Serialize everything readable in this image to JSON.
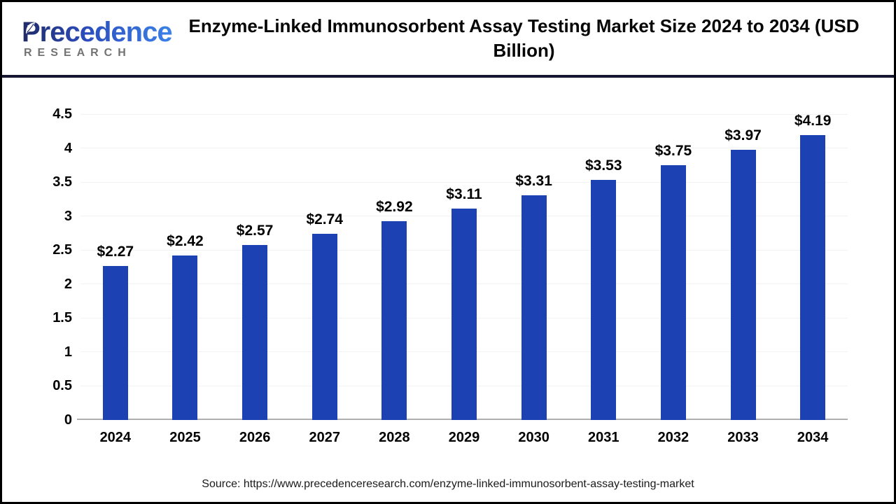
{
  "header": {
    "logo": {
      "line1": "Precedence",
      "line2": "RESEARCH"
    },
    "title": "Enzyme-Linked Immunosorbent Assay Testing Market Size 2024 to 2034 (USD Billion)"
  },
  "chart_data": {
    "type": "bar",
    "title": "Enzyme-Linked Immunosorbent Assay Testing Market Size 2024 to 2034 (USD Billion)",
    "categories": [
      "2024",
      "2025",
      "2026",
      "2027",
      "2028",
      "2029",
      "2030",
      "2031",
      "2032",
      "2033",
      "2034"
    ],
    "values": [
      2.27,
      2.42,
      2.57,
      2.74,
      2.92,
      3.11,
      3.31,
      3.53,
      3.75,
      3.97,
      4.19
    ],
    "value_prefix": "$",
    "xlabel": "",
    "ylabel": "",
    "ylim": [
      0,
      4.5
    ],
    "yticks": [
      0,
      0.5,
      1,
      1.5,
      2,
      2.5,
      3,
      3.5,
      4,
      4.5
    ],
    "ytick_labels": [
      "0",
      "0.5",
      "1",
      "1.5",
      "2",
      "2.5",
      "3",
      "3.5",
      "4",
      "4.5"
    ],
    "grid": true,
    "legend": "none",
    "bar_color": "#1c41b2"
  },
  "source": {
    "text": "Source: https://www.precedenceresearch.com/enzyme-linked-immunosorbent-assay-testing-market"
  },
  "colors": {
    "bar": "#1c41b2",
    "divider": "#161633",
    "page_border": "#000000",
    "gridline": "#f2f2f2",
    "zero_axis": "#afafaf",
    "logo_gradient_start": "#1f2a66",
    "logo_gradient_end": "#3b82e8",
    "research_gray": "#737373"
  }
}
